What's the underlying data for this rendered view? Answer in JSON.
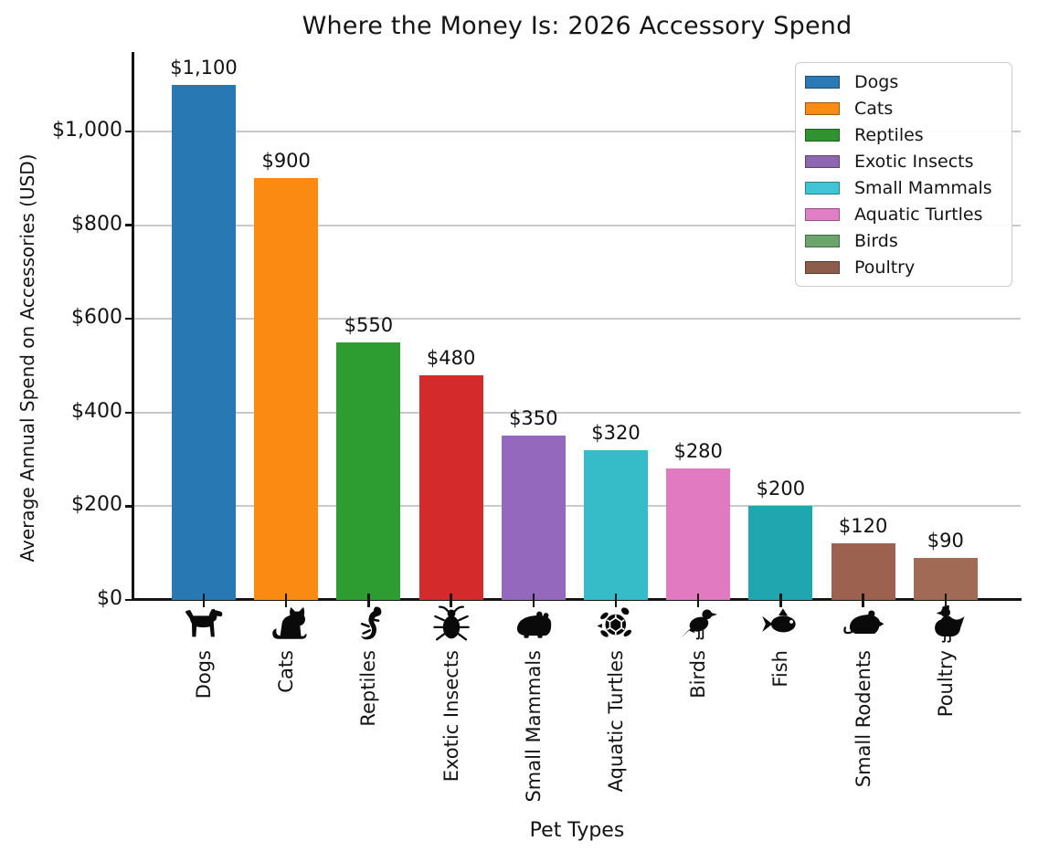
{
  "title": "Where the Money Is: 2026 Accessory Spend",
  "chart_data": {
    "type": "bar",
    "title": "Where the Money Is: 2026 Accessory Spend",
    "xlabel": "Pet Types",
    "ylabel": "Average Annual Spend on Accessories (USD)",
    "categories": [
      "Dogs",
      "Cats",
      "Reptiles",
      "Exotic Insects",
      "Small Mammals",
      "Aquatic Turtles",
      "Birds",
      "Fish",
      "Small Rodents",
      "Poultry"
    ],
    "values": [
      1100,
      900,
      550,
      480,
      350,
      320,
      280,
      200,
      120,
      90
    ],
    "value_labels": [
      "$1,100",
      "$900",
      "$550",
      "$480",
      "$350",
      "$320",
      "$280",
      "$200",
      "$120",
      "$90"
    ],
    "bar_colors": [
      "#2878b4",
      "#fb8a12",
      "#2e9d31",
      "#d42a2c",
      "#9468bd",
      "#36bcc8",
      "#e27ac2",
      "#1fa6ae",
      "#9d614f",
      "#a06a55"
    ],
    "icons": [
      "dog",
      "cat",
      "gecko",
      "beetle",
      "hamster",
      "turtle",
      "bird",
      "fish",
      "rodent",
      "chicken"
    ],
    "ylim": [
      0,
      1170
    ],
    "grid": true,
    "yticks": [
      {
        "value": 0,
        "label": "$0"
      },
      {
        "value": 200,
        "label": "$200"
      },
      {
        "value": 400,
        "label": "$400"
      },
      {
        "value": 600,
        "label": "$600"
      },
      {
        "value": 800,
        "label": "$800"
      },
      {
        "value": 1000,
        "label": "$1,000"
      }
    ],
    "legend": {
      "position": "upper right",
      "entries": [
        {
          "label": "Dogs",
          "color": "#2b79b5"
        },
        {
          "label": "Cats",
          "color": "#fb8b12"
        },
        {
          "label": "Reptiles",
          "color": "#2f9330"
        },
        {
          "label": "Exotic Insects",
          "color": "#8f66b0"
        },
        {
          "label": "Small Mammals",
          "color": "#41c4d4"
        },
        {
          "label": "Aquatic Turtles",
          "color": "#e07fc5"
        },
        {
          "label": "Birds",
          "color": "#6ba56b"
        },
        {
          "label": "Poultry",
          "color": "#8e5c4b"
        }
      ]
    }
  },
  "colors": {
    "background": "#ffffff",
    "axis": "#141414",
    "grid": "#c9c9c9",
    "icon": "#0a0a0a",
    "legend_border": "#cccccc"
  }
}
